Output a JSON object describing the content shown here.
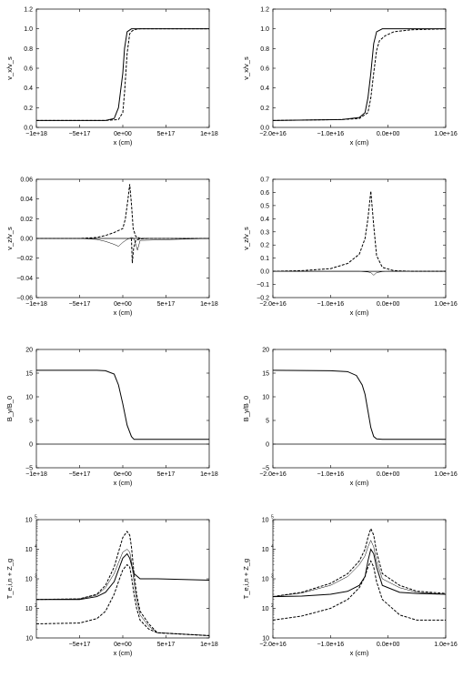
{
  "chart_data": [
    {
      "id": "p1",
      "type": "line",
      "col": 0,
      "row": 0,
      "xlabel": "x (cm)",
      "ylabel": "v_x/v_s",
      "xlim": [
        -1e+18,
        1e+18
      ],
      "ylim": [
        0,
        1.2
      ],
      "xticks": [
        -1e+18,
        -5e+17,
        0,
        5e+17,
        1e+18
      ],
      "xtick_labels": [
        "−1e+18",
        "−5e+17",
        "0e+00",
        "5e+17",
        "1e+18"
      ],
      "yticks": [
        0,
        0.2,
        0.4,
        0.6,
        0.8,
        1.0,
        1.2
      ],
      "ytick_labels": [
        "0.0",
        "0.2",
        "0.4",
        "0.6",
        "0.8",
        "1.0",
        "1.2"
      ],
      "series": [
        {
          "style": "solid",
          "x": [
            -1e+18,
            -2e+17,
            -1e+17,
            -5e+16,
            0,
            2e+16,
            5e+16,
            1e+17,
            1.3e+17,
            2e+17,
            1e+18
          ],
          "y": [
            0.07,
            0.07,
            0.09,
            0.2,
            0.55,
            0.8,
            0.97,
            1.0,
            1.0,
            1.0,
            1.0
          ]
        },
        {
          "style": "dashed",
          "x": [
            -1e+18,
            -2e+17,
            -5e+16,
            0,
            2e+16,
            5e+16,
            8e+16,
            1.1e+17,
            1.5e+17,
            2e+17,
            1e+18
          ],
          "y": [
            0.07,
            0.07,
            0.08,
            0.15,
            0.35,
            0.75,
            0.95,
            0.98,
            0.995,
            1.0,
            1.0
          ]
        }
      ]
    },
    {
      "id": "p2",
      "type": "line",
      "col": 1,
      "row": 0,
      "xlabel": "x (cm)",
      "ylabel": "v_x/v_s",
      "xlim": [
        -2e+16,
        1e+16
      ],
      "ylim": [
        0,
        1.2
      ],
      "xticks": [
        -2e+16,
        -1e+16,
        0,
        1e+16
      ],
      "xtick_labels": [
        "−2.0e+16",
        "−1.0e+16",
        "0.0e+00",
        "1.0e+16"
      ],
      "yticks": [
        0,
        0.2,
        0.4,
        0.6,
        0.8,
        1.0,
        1.2
      ],
      "ytick_labels": [
        "0.0",
        "0.2",
        "0.4",
        "0.6",
        "0.8",
        "1.0",
        "1.2"
      ],
      "series": [
        {
          "style": "solid",
          "x": [
            -2e+16,
            -8000000000000000.0,
            -5000000000000000.0,
            -4000000000000000.0,
            -3500000000000000.0,
            -3000000000000000.0,
            -2500000000000000.0,
            -2000000000000000.0,
            -1000000000000000.0,
            0,
            1e+16
          ],
          "y": [
            0.07,
            0.08,
            0.1,
            0.15,
            0.3,
            0.55,
            0.85,
            0.97,
            1.0,
            1.0,
            1.0
          ]
        },
        {
          "style": "dashed",
          "x": [
            -2e+16,
            -8000000000000000.0,
            -5000000000000000.0,
            -3500000000000000.0,
            -3000000000000000.0,
            -2500000000000000.0,
            -2000000000000000.0,
            -1500000000000000.0,
            -500000000000000.0,
            1000000000000000.0,
            4000000000000000.0,
            1e+16
          ],
          "y": [
            0.07,
            0.08,
            0.09,
            0.15,
            0.3,
            0.55,
            0.78,
            0.88,
            0.93,
            0.97,
            0.99,
            1.0
          ]
        }
      ]
    },
    {
      "id": "p3",
      "type": "line",
      "col": 0,
      "row": 1,
      "xlabel": "x (cm)",
      "ylabel": "v_z/v_s",
      "xlim": [
        -1e+18,
        1e+18
      ],
      "ylim": [
        -0.06,
        0.06
      ],
      "xticks": [
        -1e+18,
        -5e+17,
        0,
        5e+17,
        1e+18
      ],
      "xtick_labels": [
        "−1e+18",
        "−5e+17",
        "0e+00",
        "5e+17",
        "1e+18"
      ],
      "yticks": [
        -0.06,
        -0.04,
        -0.02,
        0,
        0.02,
        0.04,
        0.06
      ],
      "ytick_labels": [
        "−0.06",
        "−0.04",
        "−0.02",
        "0.00",
        "0.02",
        "0.04",
        "0.06"
      ],
      "series": [
        {
          "style": "dashed",
          "x": [
            -1e+18,
            -5e+17,
            -3e+17,
            -2e+17,
            -1e+17,
            -5e+16,
            0,
            3e+16,
            6e+16,
            8e+16,
            1e+17,
            1.2e+17,
            1.5e+17,
            2e+17,
            1e+18
          ],
          "y": [
            0,
            0,
            0.001,
            0.003,
            0.006,
            0.008,
            0.01,
            0.02,
            0.04,
            0.055,
            0.035,
            0.01,
            0.002,
            0,
            0
          ]
        },
        {
          "style": "dashed",
          "x": [
            1e+17,
            1.1e+17,
            1.25e+17,
            1.5e+17,
            2e+17,
            3e+17
          ],
          "y": [
            0,
            -0.025,
            -0.01,
            -0.002,
            -0.0005,
            0
          ]
        },
        {
          "style": "thin",
          "x": [
            -1e+18,
            -5e+17,
            -3e+17,
            -2e+17,
            -1e+17,
            -5e+16,
            0,
            5e+16,
            1e+17,
            1.3e+17,
            1.7e+17,
            2e+17,
            1e+18
          ],
          "y": [
            0,
            0,
            -0.001,
            -0.003,
            -0.006,
            -0.008,
            -0.004,
            -0.001,
            0.001,
            0,
            -0.012,
            -0.002,
            0
          ]
        }
      ]
    },
    {
      "id": "p4",
      "type": "line",
      "col": 1,
      "row": 1,
      "xlabel": "x (cm)",
      "ylabel": "v_z/v_s",
      "xlim": [
        -2e+16,
        1e+16
      ],
      "ylim": [
        -0.2,
        0.7
      ],
      "xticks": [
        -2e+16,
        -1e+16,
        0,
        1e+16
      ],
      "xtick_labels": [
        "−2.0e+16",
        "−1.0e+16",
        "0.0e+00",
        "1.0e+16"
      ],
      "yticks": [
        -0.2,
        -0.1,
        0,
        0.1,
        0.2,
        0.3,
        0.4,
        0.5,
        0.6,
        0.7
      ],
      "ytick_labels": [
        "−0.2",
        "−0.1",
        "0.0",
        "0.1",
        "0.2",
        "0.3",
        "0.4",
        "0.5",
        "0.6",
        "0.7"
      ],
      "series": [
        {
          "style": "dashed",
          "x": [
            -2e+16,
            -1.5e+16,
            -1e+16,
            -7000000000000000.0,
            -5000000000000000.0,
            -4000000000000000.0,
            -3500000000000000.0,
            -3000000000000000.0,
            -2500000000000000.0,
            -2000000000000000.0,
            -1000000000000000.0,
            1000000000000000.0,
            4000000000000000.0,
            1e+16
          ],
          "y": [
            0,
            0.005,
            0.02,
            0.06,
            0.13,
            0.25,
            0.4,
            0.61,
            0.35,
            0.12,
            0.03,
            0.005,
            0,
            0
          ]
        },
        {
          "style": "thin",
          "x": [
            -2e+16,
            -5000000000000000.0,
            -3500000000000000.0,
            -3000000000000000.0,
            -2500000000000000.0,
            -2000000000000000.0,
            -1000000000000000.0,
            0,
            1e+16
          ],
          "y": [
            0,
            0,
            -0.005,
            -0.01,
            -0.03,
            -0.01,
            -0.002,
            0,
            0
          ]
        }
      ]
    },
    {
      "id": "p5",
      "type": "line",
      "col": 0,
      "row": 2,
      "xlabel": "x (cm)",
      "ylabel": "B_y/B_0",
      "xlim": [
        -1e+18,
        1e+18
      ],
      "ylim": [
        -5,
        20
      ],
      "xticks": [
        -1e+18,
        -5e+17,
        0,
        5e+17,
        1e+18
      ],
      "xtick_labels": [
        "−1e+18",
        "−5e+17",
        "0e+00",
        "5e+17",
        "1e+18"
      ],
      "yticks": [
        -5,
        0,
        5,
        10,
        15,
        20
      ],
      "ytick_labels": [
        "−5",
        "0",
        "5",
        "10",
        "15",
        "20"
      ],
      "series": [
        {
          "style": "solid",
          "x": [
            -1e+18,
            -3e+17,
            -2e+17,
            -1e+17,
            -5e+16,
            0,
            5e+16,
            1e+17,
            1.3e+17,
            2e+17,
            1e+18
          ],
          "y": [
            15.6,
            15.6,
            15.5,
            14.8,
            12.5,
            8.5,
            4.0,
            1.6,
            1.0,
            1.0,
            1.0
          ]
        }
      ]
    },
    {
      "id": "p6",
      "type": "line",
      "col": 1,
      "row": 2,
      "xlabel": "x (cm)",
      "ylabel": "B_y/B_0",
      "xlim": [
        -2e+16,
        1e+16
      ],
      "ylim": [
        -5,
        20
      ],
      "xticks": [
        -2e+16,
        -1e+16,
        0,
        1e+16
      ],
      "xtick_labels": [
        "−2.0e+16",
        "−1.0e+16",
        "0.0e+00",
        "1.0e+16"
      ],
      "yticks": [
        -5,
        0,
        5,
        10,
        15,
        20
      ],
      "ytick_labels": [
        "−5",
        "0",
        "5",
        "10",
        "15",
        "20"
      ],
      "series": [
        {
          "style": "solid",
          "x": [
            -2e+16,
            -1e+16,
            -7000000000000000.0,
            -5500000000000000.0,
            -4500000000000000.0,
            -4000000000000000.0,
            -3500000000000000.0,
            -3000000000000000.0,
            -2500000000000000.0,
            -2000000000000000.0,
            -1000000000000000.0,
            0,
            1e+16
          ],
          "y": [
            15.6,
            15.5,
            15.3,
            14.5,
            12.5,
            10.5,
            7.0,
            3.5,
            1.6,
            1.1,
            1.0,
            1.0,
            1.0
          ]
        }
      ]
    },
    {
      "id": "p7",
      "type": "line",
      "col": 0,
      "row": 3,
      "xlabel": "x (cm)",
      "ylabel": "T_e,i,n + Z_g",
      "scale": "log",
      "xlim": [
        -1e+18,
        1e+18
      ],
      "ylim": [
        10,
        100000
      ],
      "xticks": [
        -5e+17,
        0,
        5e+17,
        1e+18
      ],
      "xtick_labels": [
        "−5e+17",
        "0e+00",
        "5e+17",
        "1e+18"
      ],
      "yticks": [
        10,
        100,
        1000,
        10000,
        100000
      ],
      "ytick_labels": [
        "10",
        "10",
        "10",
        "10",
        "10"
      ],
      "ytick_exponents": [
        "",
        "2",
        "3",
        "4",
        "5"
      ],
      "series": [
        {
          "style": "solid",
          "x": [
            -1e+18,
            -5e+17,
            -3e+17,
            -2e+17,
            -1e+17,
            -5e+16,
            0,
            5e+16,
            8e+16,
            1e+17,
            1.3e+17,
            2e+17,
            4e+17,
            1e+18
          ],
          "y": [
            200,
            200,
            250,
            350,
            800,
            2000,
            5000,
            7000,
            5000,
            3000,
            1500,
            1000,
            1000,
            900
          ]
        },
        {
          "style": "dashed",
          "x": [
            -1e+18,
            -5e+17,
            -3e+17,
            -2e+17,
            -1e+17,
            -5e+16,
            0,
            5e+16,
            8e+16,
            1e+17,
            1.3e+17,
            1.6e+17,
            2e+17,
            3e+17,
            4e+17,
            1e+18
          ],
          "y": [
            200,
            210,
            300,
            600,
            2500,
            8000,
            25000,
            40000,
            30000,
            12000,
            1500,
            300,
            80,
            30,
            15,
            12
          ]
        },
        {
          "style": "thin",
          "x": [
            -1e+18,
            -5e+17,
            -3e+17,
            -2e+17,
            -1e+17,
            -5e+16,
            0,
            5e+16,
            8e+16,
            1e+17,
            1.3e+17,
            1.6e+17,
            2e+17,
            3e+17,
            4e+17,
            1e+18
          ],
          "y": [
            200,
            210,
            280,
            500,
            1500,
            3500,
            8000,
            10000,
            8000,
            4000,
            800,
            200,
            60,
            25,
            15,
            12
          ]
        },
        {
          "style": "dashed",
          "x": [
            -1e+18,
            -5e+17,
            -3e+17,
            -2e+17,
            -1e+17,
            -5e+16,
            0,
            5e+16,
            8e+16,
            1e+17,
            1.3e+17,
            1.6e+17,
            2e+17,
            3e+17,
            4e+17,
            1e+18
          ],
          "y": [
            30,
            32,
            45,
            80,
            300,
            800,
            2000,
            3000,
            2500,
            1200,
            300,
            100,
            40,
            20,
            15,
            12
          ]
        }
      ]
    },
    {
      "id": "p8",
      "type": "line",
      "col": 1,
      "row": 3,
      "xlabel": "x (cm)",
      "ylabel": "T_e,i,n + Z_g",
      "scale": "log",
      "xlim": [
        -2e+16,
        1e+16
      ],
      "ylim": [
        10,
        100000
      ],
      "xticks": [
        -2e+16,
        -1e+16,
        0,
        1e+16
      ],
      "xtick_labels": [
        "−2.0e+16",
        "−1.0e+16",
        "0.0e+00",
        "1.0e+16"
      ],
      "yticks": [
        10,
        100,
        1000,
        10000,
        100000
      ],
      "ytick_labels": [
        "10",
        "10",
        "10",
        "10",
        "10"
      ],
      "ytick_exponents": [
        "",
        "2",
        "3",
        "4",
        "5"
      ],
      "series": [
        {
          "style": "solid",
          "x": [
            -2e+16,
            -1.5e+16,
            -1e+16,
            -7000000000000000.0,
            -5000000000000000.0,
            -4000000000000000.0,
            -3500000000000000.0,
            -3000000000000000.0,
            -2500000000000000.0,
            -2000000000000000.0,
            -1000000000000000.0,
            2000000000000000.0,
            5000000000000000.0,
            1e+16
          ],
          "y": [
            250,
            260,
            300,
            380,
            600,
            1200,
            4000,
            10000,
            7000,
            2500,
            600,
            350,
            320,
            300
          ]
        },
        {
          "style": "dashed",
          "x": [
            -2e+16,
            -1.5e+16,
            -1e+16,
            -7000000000000000.0,
            -5000000000000000.0,
            -4000000000000000.0,
            -3500000000000000.0,
            -3000000000000000.0,
            -2500000000000000.0,
            -2000000000000000.0,
            -1000000000000000.0,
            2000000000000000.0,
            5000000000000000.0,
            1e+16
          ],
          "y": [
            250,
            350,
            700,
            1500,
            4000,
            10000,
            25000,
            50000,
            30000,
            8000,
            1500,
            600,
            380,
            320
          ]
        },
        {
          "style": "thin",
          "x": [
            -2e+16,
            -1.5e+16,
            -1e+16,
            -7000000000000000.0,
            -5000000000000000.0,
            -4000000000000000.0,
            -3500000000000000.0,
            -3000000000000000.0,
            -2500000000000000.0,
            -2000000000000000.0,
            -1000000000000000.0,
            2000000000000000.0,
            5000000000000000.0,
            1e+16
          ],
          "y": [
            250,
            330,
            600,
            1200,
            3000,
            6000,
            12000,
            20000,
            12000,
            4000,
            1000,
            500,
            350,
            300
          ]
        },
        {
          "style": "dashed",
          "x": [
            -2e+16,
            -1.5e+16,
            -1e+16,
            -7000000000000000.0,
            -5000000000000000.0,
            -4000000000000000.0,
            -3500000000000000.0,
            -3000000000000000.0,
            -2500000000000000.0,
            -2000000000000000.0,
            -1000000000000000.0,
            2000000000000000.0,
            5000000000000000.0,
            1e+16
          ],
          "y": [
            40,
            55,
            100,
            200,
            500,
            1200,
            2500,
            4000,
            2500,
            800,
            200,
            60,
            40,
            40
          ]
        }
      ]
    }
  ]
}
